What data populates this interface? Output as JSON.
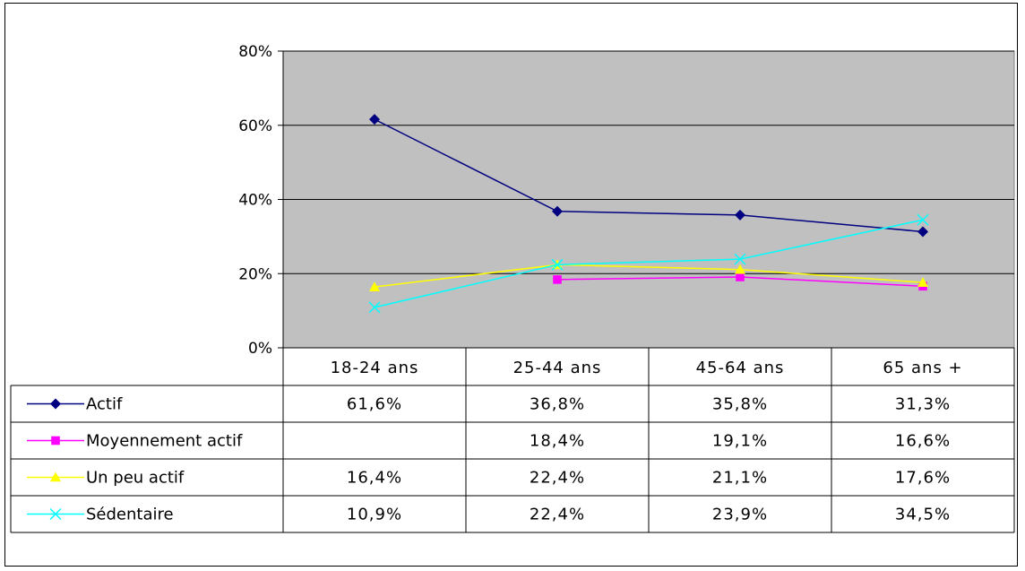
{
  "chart_data": {
    "type": "line",
    "categories": [
      "18-24 ans",
      "25-44 ans",
      "45-64 ans",
      "65 ans +"
    ],
    "ylim": [
      0,
      0.8
    ],
    "yticks": [
      "0%",
      "20%",
      "40%",
      "60%",
      "80%"
    ],
    "ytick_values": [
      0,
      0.2,
      0.4,
      0.6,
      0.8
    ],
    "grid": true,
    "plot_background": "#c0c0c0",
    "legend": "data-table",
    "series": [
      {
        "name": "Actif",
        "color": "#000080",
        "marker": "diamond",
        "values": [
          0.616,
          0.368,
          0.358,
          0.313
        ],
        "labels": [
          "61,6%",
          "36,8%",
          "35,8%",
          "31,3%"
        ]
      },
      {
        "name": "Moyennement actif",
        "color": "#ff00ff",
        "marker": "square",
        "values": [
          null,
          0.184,
          0.191,
          0.166
        ],
        "labels": [
          "",
          "18,4%",
          "19,1%",
          "16,6%"
        ]
      },
      {
        "name": "Un peu actif",
        "color": "#ffff00",
        "marker": "triangle",
        "values": [
          0.164,
          0.224,
          0.211,
          0.176
        ],
        "labels": [
          "16,4%",
          "22,4%",
          "21,1%",
          "17,6%"
        ]
      },
      {
        "name": "Sédentaire",
        "color": "#00ffff",
        "marker": "x",
        "values": [
          0.109,
          0.224,
          0.239,
          0.345
        ],
        "labels": [
          "10,9%",
          "22,4%",
          "23,9%",
          "34,5%"
        ]
      }
    ]
  }
}
